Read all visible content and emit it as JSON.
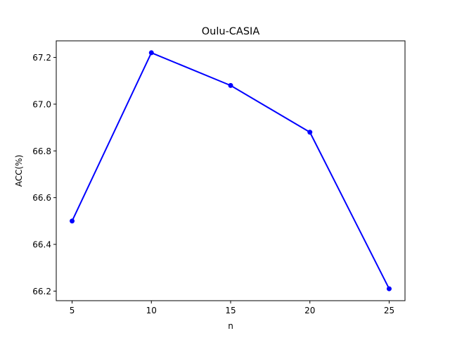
{
  "chart_data": {
    "type": "line",
    "title": "Oulu-CASIA",
    "xlabel": "n",
    "ylabel": "ACC(%)",
    "x": [
      5,
      10,
      15,
      20,
      25
    ],
    "series": [
      {
        "values": [
          66.5,
          67.22,
          67.08,
          66.88,
          66.21
        ],
        "color": "#0000ff",
        "marker": "circle"
      }
    ],
    "xticks": [
      5,
      10,
      15,
      20,
      25
    ],
    "yticks": [
      66.2,
      66.4,
      66.6,
      66.8,
      67.0,
      67.2
    ],
    "ytick_labels": [
      "66.2",
      "66.4",
      "66.6",
      "66.8",
      "67.0",
      "67.2"
    ],
    "xlim": [
      4.0,
      26.0
    ],
    "ylim": [
      66.159,
      67.271
    ],
    "grid": false,
    "legend": "none"
  }
}
